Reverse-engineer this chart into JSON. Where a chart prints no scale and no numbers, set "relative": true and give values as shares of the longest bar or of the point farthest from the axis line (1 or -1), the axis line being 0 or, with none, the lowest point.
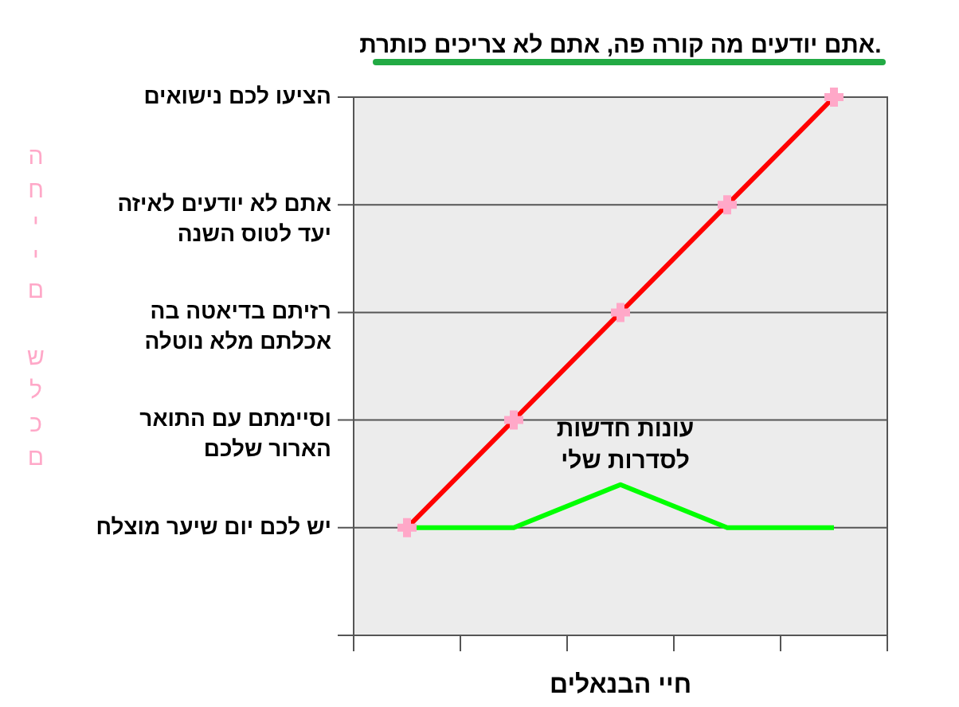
{
  "chart_data": {
    "type": "line",
    "title": "אתם יודעים מה קורה פה, אתם לא צריכים כותרת.",
    "xlabel": "חיי הבנאלים",
    "categories": [
      null,
      null,
      null,
      null,
      null
    ],
    "relative": true,
    "series": [
      {
        "color": "#ff0000",
        "values": [
          0.2,
          0.4,
          0.6,
          0.8,
          1
        ]
      },
      {
        "color": "#00ff00",
        "values": [
          0.2,
          0.2,
          0.28,
          0.2,
          0.2
        ],
        "marker": "none"
      }
    ],
    "ref_lines": [
      {
        "axis": "y",
        "value": 0.2,
        "label": "יש לכם יום שיער מוצלח"
      },
      {
        "axis": "y",
        "value": 0.4,
        "label": "וסיימתם עם התואר הארור שלכם"
      },
      {
        "axis": "y",
        "value": 0.6,
        "label": "רזיתם בדיאטה בה אכלתם מלא נוטלה"
      },
      {
        "axis": "y",
        "value": 0.8,
        "label": "אתם לא יודעים לאיזה יעד לטוס השנה"
      },
      {
        "axis": "y",
        "value": 1,
        "label": "הציעו לכם נישואים"
      }
    ],
    "marker": "cross",
    "line_style": "solid",
    "legend": false,
    "annotations": [
      "עונות חדשות לסדרות שלי",
      "החיים שלכם"
    ]
  }
}
